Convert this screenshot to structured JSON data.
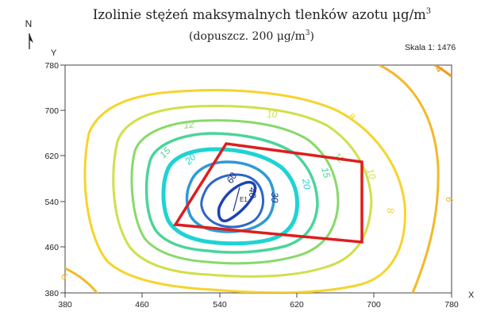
{
  "title": {
    "main": "Izolinie stężeń maksymalnych tlenków azotu μg/m",
    "main_sup": "3",
    "sub": "(dopuszcz. 200 μg/m",
    "sub_sup": "3",
    "sub_end": ")"
  },
  "north_label": "N",
  "scale_text": "Skala 1: 1476",
  "axes": {
    "x_name": "X",
    "y_name": "Y",
    "x_ticks": [
      "380",
      "460",
      "540",
      "620",
      "700",
      "780"
    ],
    "y_ticks": [
      "780",
      "700",
      "620",
      "540",
      "460",
      "380"
    ]
  },
  "emitter_label": "E1",
  "contours": [
    {
      "level": "4",
      "color": "#f09a1c"
    },
    {
      "level": "6",
      "color": "#f2b92a"
    },
    {
      "level": "8",
      "color": "#f6d42c"
    },
    {
      "level": "10",
      "color": "#cfe04a"
    },
    {
      "level": "12",
      "color": "#88d96a"
    },
    {
      "level": "15",
      "color": "#4cd49a"
    },
    {
      "level": "20",
      "color": "#1fd3d3"
    },
    {
      "level": "30",
      "color": "#2f9ad6"
    },
    {
      "level": "40",
      "color": "#2d66c9"
    },
    {
      "level": "60",
      "color": "#1d43b0"
    }
  ],
  "boundary_color": "#dd1e1e"
}
